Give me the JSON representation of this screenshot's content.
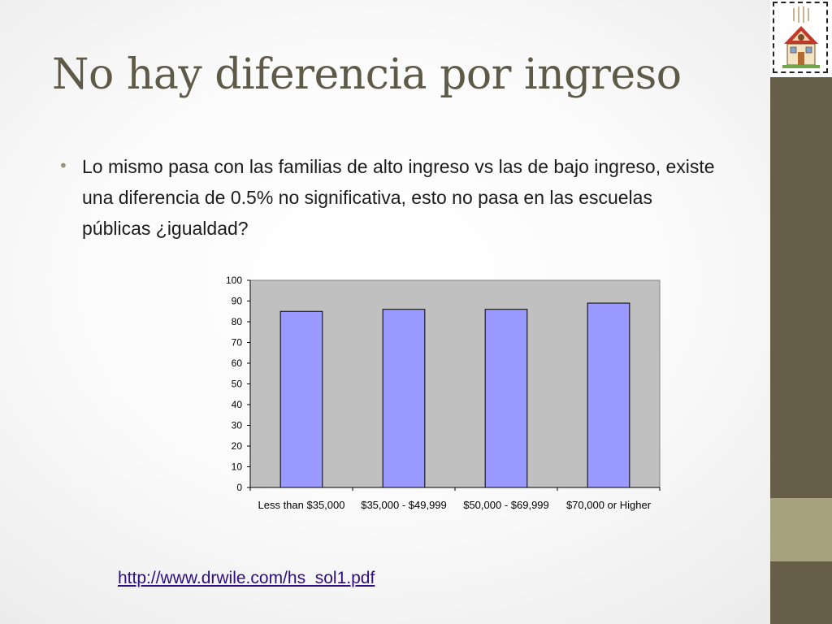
{
  "slide": {
    "title": "No hay diferencia por ingreso",
    "bullet": "Lo mismo pasa con las familias de alto ingreso vs las de bajo ingreso, existe una diferencia de 0.5% no significativa, esto no pasa en las escuelas públicas ¿igualdad?",
    "link": "http://www.drwile.com/hs_sol1.pdf",
    "logo_icon": "schoolhouse-icon"
  },
  "colors": {
    "title": "#5f5a48",
    "sidebar_dark": "#675e47",
    "sidebar_light": "#a5a27d",
    "bar_fill": "#9999ff",
    "plot_background": "#c0c0c0",
    "link": "#2e0d82"
  },
  "chart_data": {
    "type": "bar",
    "categories": [
      "Less than $35,000",
      "$35,000 - $49,999",
      "$50,000 - $69,999",
      "$70,000 or Higher"
    ],
    "values": [
      85,
      86,
      86,
      89
    ],
    "ylim": [
      0,
      100
    ],
    "yticks": [
      0,
      10,
      20,
      30,
      40,
      50,
      60,
      70,
      80,
      90,
      100
    ],
    "grid": false,
    "legend": "none"
  }
}
